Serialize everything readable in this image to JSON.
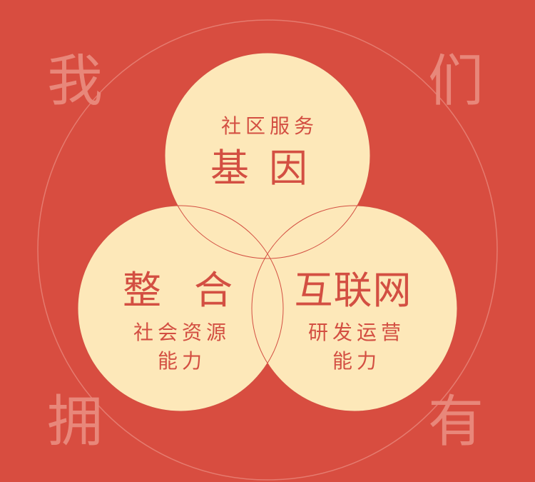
{
  "corners": {
    "top_left": "我",
    "top_right": "们",
    "bottom_left": "拥",
    "bottom_right": "有"
  },
  "circles": {
    "top": {
      "subtitle": "社区服务",
      "title": "基因"
    },
    "left": {
      "title": "整合",
      "subtitle_line1": "社会资源",
      "subtitle_line2": "能力"
    },
    "right": {
      "title": "互联网",
      "subtitle_line1": "研发运营",
      "subtitle_line2": "能力"
    }
  },
  "colors": {
    "background": "#d84d40",
    "circle_fill": "#fde8b9",
    "circle_stroke": "#d34f42",
    "text": "#d34f42",
    "corner_text": "#e8877a",
    "ring": "#e8877a"
  }
}
